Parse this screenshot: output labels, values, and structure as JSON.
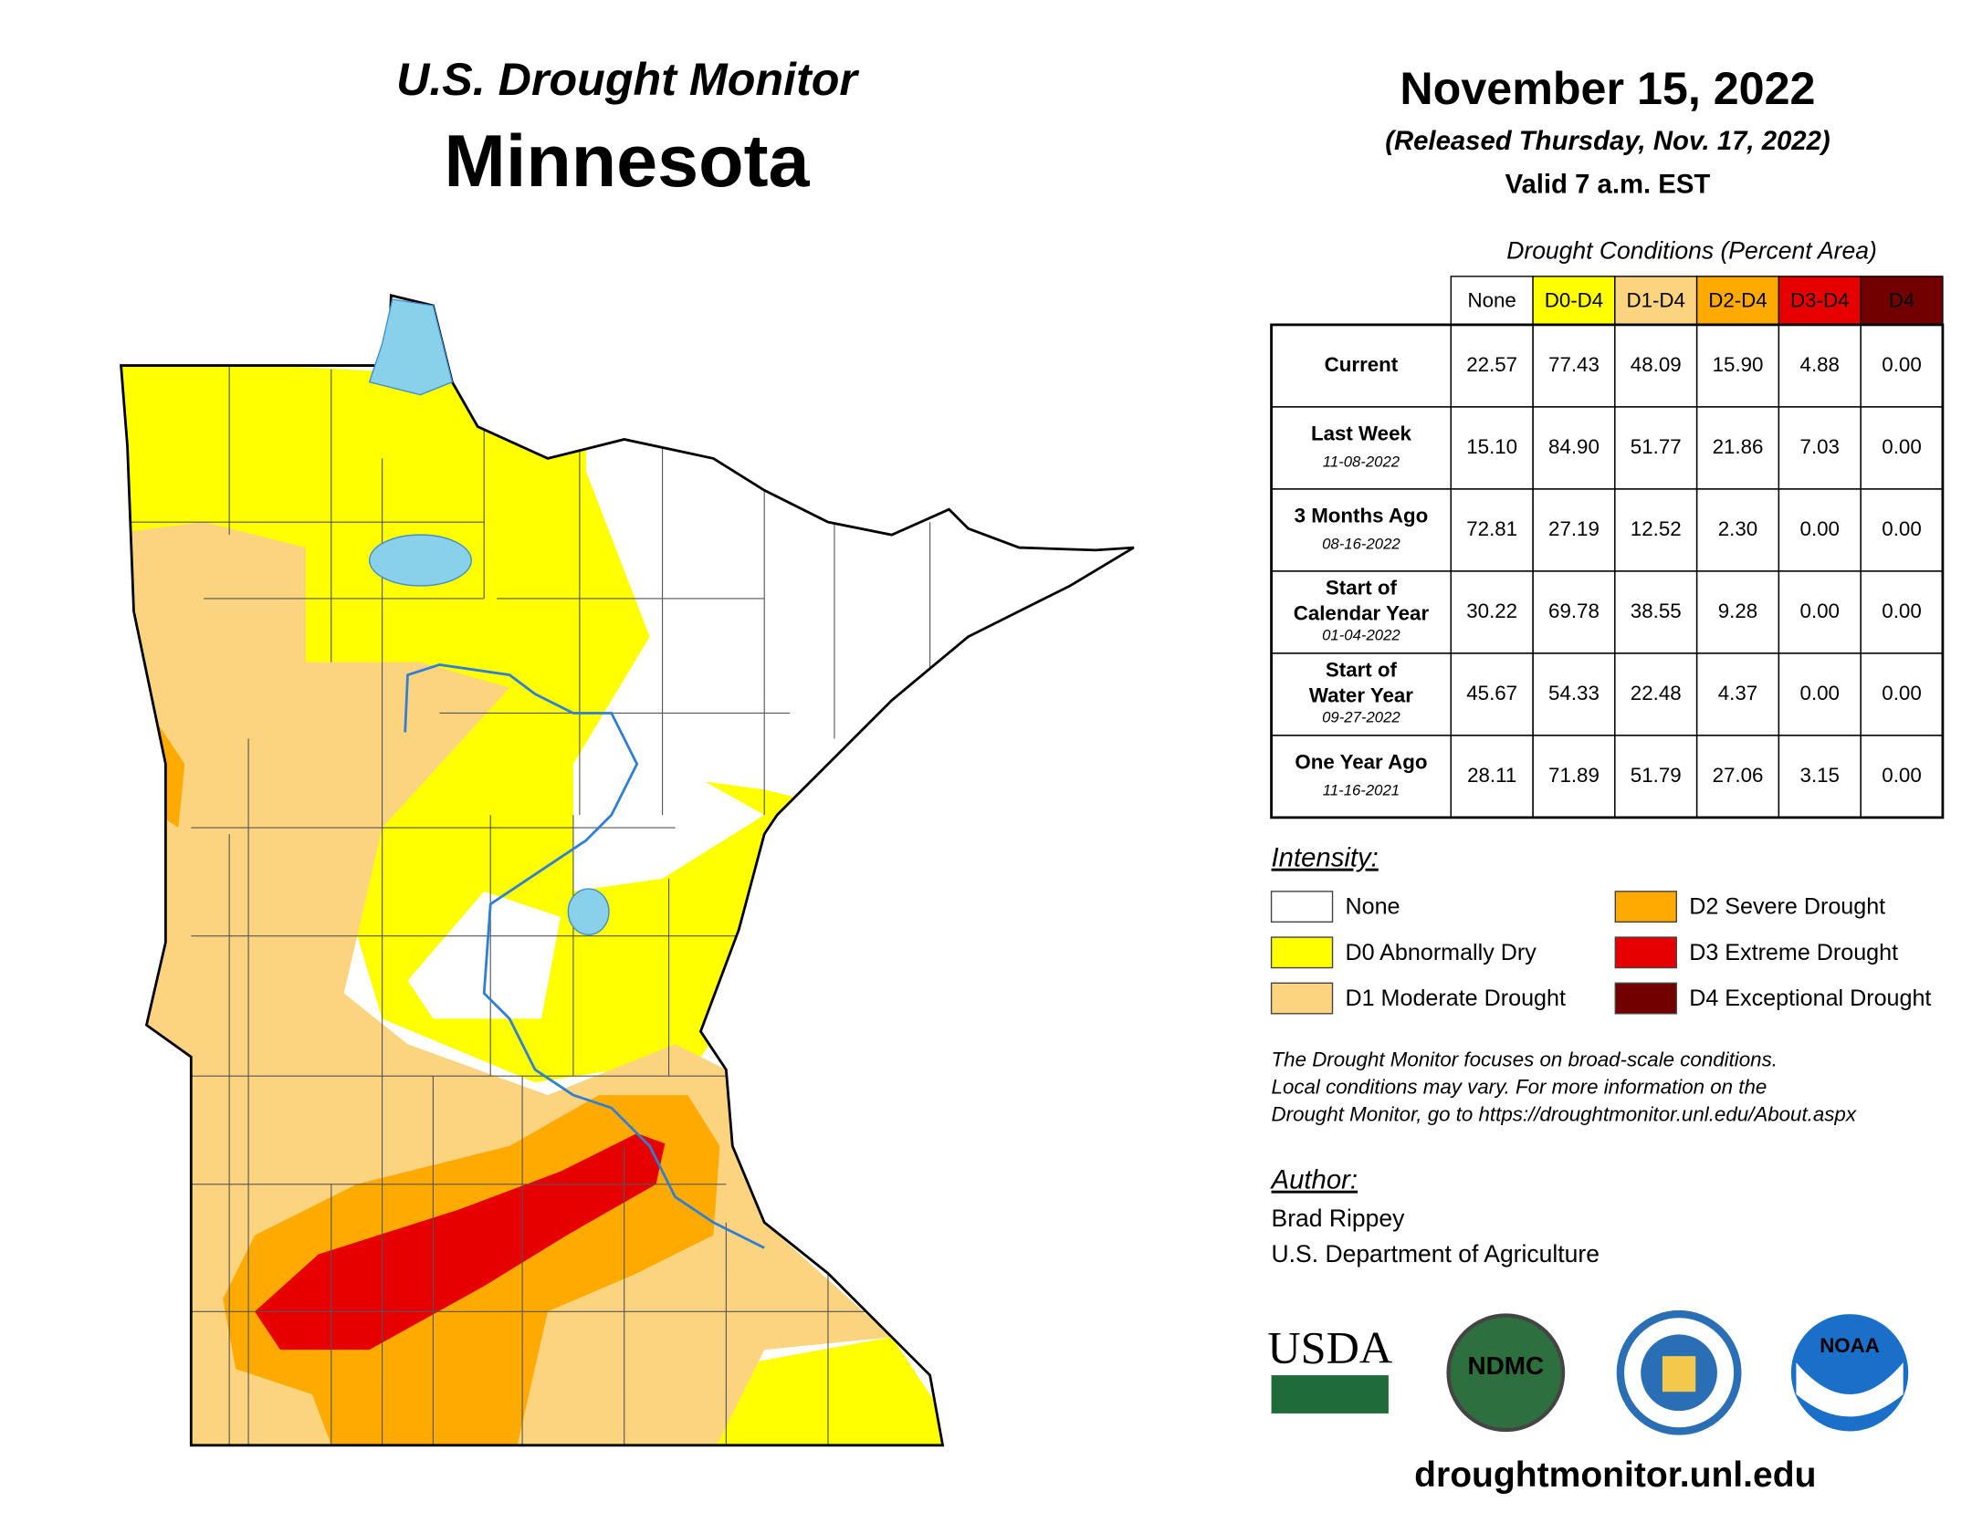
{
  "header": {
    "title": "U.S. Drought Monitor",
    "state": "Minnesota",
    "date": "November 15, 2022",
    "released": "(Released Thursday, Nov. 17, 2022)",
    "valid": "Valid 7 a.m. EST"
  },
  "table": {
    "caption": "Drought Conditions (Percent Area)",
    "columns": [
      {
        "label": "None",
        "color": "#ffffff",
        "text_color": "#000000"
      },
      {
        "label": "D0-D4",
        "color": "#ffff00",
        "text_color": "#000000"
      },
      {
        "label": "D1-D4",
        "color": "#fcd37f",
        "text_color": "#000000"
      },
      {
        "label": "D2-D4",
        "color": "#ffaa00",
        "text_color": "#000000"
      },
      {
        "label": "D3-D4",
        "color": "#e60000",
        "text_color": "#ffffff"
      },
      {
        "label": "D4",
        "color": "#730000",
        "text_color": "#ffffff"
      }
    ],
    "rows": [
      {
        "label": "Current",
        "values": [
          "22.57",
          "77.43",
          "48.09",
          "15.90",
          "4.88",
          "0.00"
        ]
      },
      {
        "label": "Last Week",
        "date": "11-08-2022",
        "values": [
          "15.10",
          "84.90",
          "51.77",
          "21.86",
          "7.03",
          "0.00"
        ]
      },
      {
        "label": "3 Months Ago",
        "date": "08-16-2022",
        "values": [
          "72.81",
          "27.19",
          "12.52",
          "2.30",
          "0.00",
          "0.00"
        ]
      },
      {
        "label": "Start of Calendar Year",
        "date": "01-04-2022",
        "values": [
          "30.22",
          "69.78",
          "38.55",
          "9.28",
          "0.00",
          "0.00"
        ]
      },
      {
        "label": "Start of Water Year",
        "date": "09-27-2022",
        "values": [
          "45.67",
          "54.33",
          "22.48",
          "4.37",
          "0.00",
          "0.00"
        ]
      },
      {
        "label": "One Year Ago",
        "date": "11-16-2021",
        "values": [
          "28.11",
          "71.89",
          "51.79",
          "27.06",
          "3.15",
          "0.00"
        ]
      }
    ]
  },
  "legend": {
    "title": "Intensity:",
    "items": [
      {
        "label": "None",
        "color": "#ffffff"
      },
      {
        "label": "D0 Abnormally Dry",
        "color": "#ffff00"
      },
      {
        "label": "D1 Moderate Drought",
        "color": "#fcd37f"
      },
      {
        "label": "D2 Severe Drought",
        "color": "#ffaa00"
      },
      {
        "label": "D3 Extreme Drought",
        "color": "#e60000"
      },
      {
        "label": "D4 Exceptional Drought",
        "color": "#730000"
      }
    ]
  },
  "note": [
    "The Drought Monitor focuses on broad-scale conditions.",
    "Local conditions may vary. For more information on the",
    "Drought Monitor, go to https://droughtmonitor.unl.edu/About.aspx"
  ],
  "author": {
    "title": "Author:",
    "lines": [
      "Brad Rippey",
      "U.S. Department of Agriculture"
    ]
  },
  "logos": [
    "USDA",
    "NDMC",
    "NOAA"
  ],
  "url": "droughtmonitor.unl.edu"
}
